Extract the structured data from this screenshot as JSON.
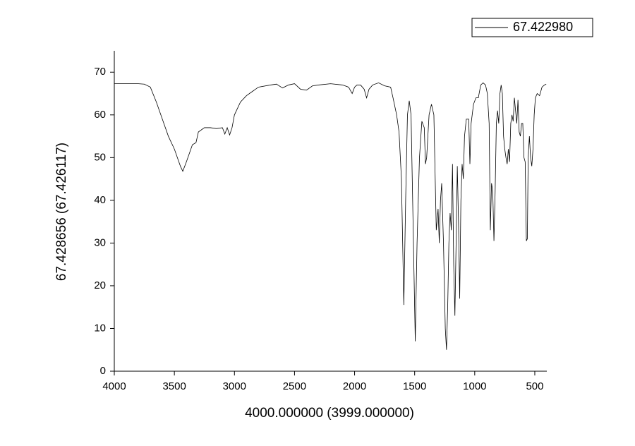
{
  "chart_data": {
    "type": "line",
    "xlabel": "4000.000000 (3999.000000)",
    "ylabel": "67.428656 (67.426117)",
    "xlim": [
      4000,
      400
    ],
    "ylim": [
      0,
      75
    ],
    "xticks": [
      4000,
      3500,
      3000,
      2500,
      2000,
      1500,
      1000,
      500
    ],
    "yticks": [
      0,
      10,
      20,
      30,
      40,
      50,
      60,
      70
    ],
    "legend": "top-right",
    "x": [
      4000,
      3900,
      3800,
      3750,
      3700,
      3650,
      3600,
      3550,
      3500,
      3450,
      3430,
      3400,
      3350,
      3320,
      3300,
      3250,
      3200,
      3150,
      3100,
      3080,
      3060,
      3040,
      3020,
      3000,
      2950,
      2900,
      2850,
      2800,
      2700,
      2650,
      2600,
      2550,
      2500,
      2450,
      2400,
      2350,
      2300,
      2200,
      2100,
      2050,
      2020,
      2000,
      1980,
      1950,
      1920,
      1900,
      1880,
      1850,
      1800,
      1750,
      1700,
      1680,
      1650,
      1630,
      1610,
      1590,
      1575,
      1560,
      1545,
      1530,
      1510,
      1495,
      1480,
      1460,
      1440,
      1420,
      1410,
      1400,
      1380,
      1360,
      1340,
      1320,
      1305,
      1295,
      1285,
      1275,
      1260,
      1245,
      1235,
      1225,
      1215,
      1205,
      1195,
      1185,
      1175,
      1165,
      1155,
      1145,
      1135,
      1125,
      1115,
      1105,
      1095,
      1085,
      1070,
      1050,
      1040,
      1030,
      1010,
      990,
      970,
      950,
      930,
      910,
      895,
      880,
      870,
      860,
      850,
      840,
      830,
      820,
      810,
      800,
      790,
      780,
      770,
      760,
      750,
      740,
      730,
      720,
      710,
      700,
      690,
      680,
      670,
      660,
      650,
      640,
      630,
      620,
      610,
      600,
      590,
      580,
      570,
      562,
      555,
      545,
      535,
      525,
      515,
      505,
      495,
      480,
      460,
      440,
      420,
      405
    ],
    "series": [
      {
        "name": "67.422980",
        "color": "#000000",
        "values": [
          67.3,
          67.3,
          67.3,
          67.2,
          66.5,
          63,
          59,
          55,
          52,
          48,
          46.8,
          49,
          53,
          53.5,
          56,
          57,
          57,
          56.8,
          57,
          55.5,
          57,
          55.3,
          57,
          60,
          63,
          64.5,
          65.5,
          66.5,
          67,
          67.2,
          66.3,
          67,
          67.3,
          66,
          65.8,
          66.8,
          67,
          67.3,
          67,
          66.5,
          65,
          66.5,
          67,
          67,
          66,
          64,
          66,
          67,
          67.5,
          66.8,
          66.5,
          64,
          60,
          56,
          45,
          15.5,
          40,
          60,
          63.3,
          60,
          30,
          7,
          30,
          50,
          58.5,
          57,
          48.5,
          50,
          60,
          62.5,
          60,
          33,
          38,
          30,
          40,
          44,
          30,
          10,
          5,
          15,
          30,
          37,
          33,
          48.5,
          25,
          13,
          30,
          48,
          35,
          17,
          40,
          48.5,
          45,
          55,
          59,
          59,
          48.5,
          58,
          62.5,
          64,
          64,
          67,
          67.5,
          67,
          65,
          58,
          33,
          44,
          42,
          30.5,
          42,
          58,
          61,
          58,
          65,
          67,
          65,
          55,
          52,
          50,
          48.5,
          52,
          49,
          58,
          60,
          58.5,
          64,
          61,
          58,
          63.5,
          56,
          55,
          58,
          58,
          50,
          49,
          30.5,
          31,
          50,
          55,
          50,
          48,
          52,
          60,
          64,
          65,
          64.5,
          66.5,
          67,
          67.2
        ]
      }
    ]
  }
}
